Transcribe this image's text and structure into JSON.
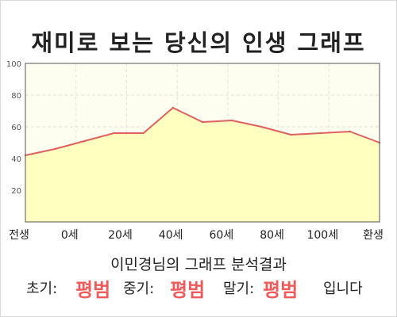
{
  "title": "재미로 보는 당신의 인생 그래프",
  "subtitle": "이민경님의 그래프 분석결과",
  "result": {
    "early_label": "초기:",
    "early_value": "평범",
    "middle_label": "중기:",
    "middle_value": "평범",
    "late_label": "말기:",
    "late_value": "평범",
    "ending": "입니다"
  },
  "colors": {
    "line": "#e06060",
    "fill": "#ffffc0",
    "plot_bg": "#fefef0",
    "grid": "#e4e4d4",
    "accent": "#ef5b5b"
  },
  "chart_data": {
    "type": "area",
    "title": "재미로 보는 당신의 인생 그래프",
    "x_ticks": [
      "전생",
      "0세",
      "20세",
      "40세",
      "60세",
      "80세",
      "100세",
      "환생"
    ],
    "y_ticks": [
      "20",
      "40",
      "60",
      "80",
      "100"
    ],
    "ylim": [
      0,
      100
    ],
    "grid": true,
    "points": [
      {
        "x": "전생",
        "y": 42
      },
      {
        "x": "0세",
        "y": 46
      },
      {
        "x": "10세",
        "y": 51
      },
      {
        "x": "20세",
        "y": 56
      },
      {
        "x": "30세",
        "y": 56
      },
      {
        "x": "40세",
        "y": 72
      },
      {
        "x": "50세",
        "y": 63
      },
      {
        "x": "60세",
        "y": 64
      },
      {
        "x": "70세",
        "y": 60
      },
      {
        "x": "80세",
        "y": 55
      },
      {
        "x": "90세",
        "y": 56
      },
      {
        "x": "100세",
        "y": 57
      },
      {
        "x": "환생",
        "y": 50
      }
    ]
  }
}
